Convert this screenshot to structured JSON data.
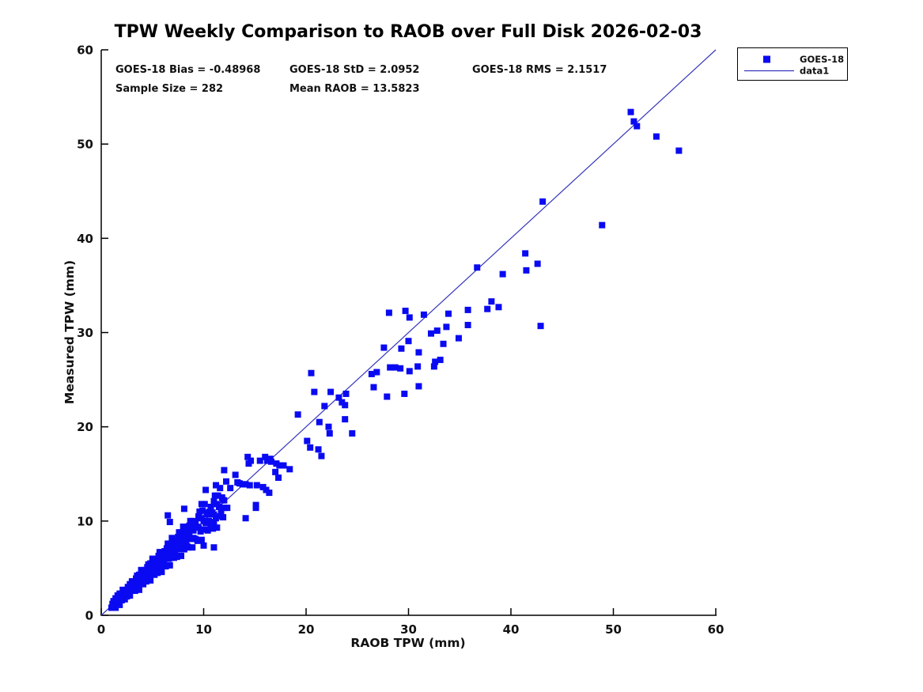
{
  "chart_data": {
    "type": "scatter",
    "title": "TPW Weekly Comparison to RAOB over Full Disk 2026-02-03",
    "xlabel": "RAOB TPW (mm)",
    "ylabel": "Measured TPW (mm)",
    "xlim": [
      0,
      60
    ],
    "ylim": [
      0,
      60
    ],
    "xticks": [
      0,
      10,
      20,
      30,
      40,
      50,
      60
    ],
    "yticks": [
      0,
      10,
      20,
      30,
      40,
      50,
      60
    ],
    "grid": false,
    "legend": {
      "position": "top-right-outside",
      "entries": [
        {
          "label": "GOES-18",
          "type": "marker"
        },
        {
          "label": "data1",
          "type": "line"
        }
      ]
    },
    "annotations": {
      "bias": "GOES-18 Bias = -0.48968",
      "std": "GOES-18 StD = 2.0952",
      "rms": "GOES-18 RMS = 2.1517",
      "sample_size": "Sample Size = 282",
      "mean_raob": "Mean RAOB = 13.5823"
    },
    "identity_line": {
      "x": [
        0,
        60
      ],
      "y": [
        0,
        60
      ],
      "name": "data1"
    },
    "series": [
      {
        "name": "GOES-18",
        "marker": "filled-square",
        "color": "#0a0af2",
        "points": [
          [
            51.7,
            53.4
          ],
          [
            52.0,
            52.4
          ],
          [
            52.3,
            51.9
          ],
          [
            54.2,
            50.8
          ],
          [
            56.4,
            49.3
          ],
          [
            48.9,
            41.4
          ],
          [
            43.1,
            43.9
          ],
          [
            41.4,
            38.4
          ],
          [
            42.6,
            37.3
          ],
          [
            41.5,
            36.6
          ],
          [
            36.7,
            36.9
          ],
          [
            39.2,
            36.2
          ],
          [
            38.1,
            33.3
          ],
          [
            37.7,
            32.5
          ],
          [
            38.8,
            32.7
          ],
          [
            35.8,
            32.4
          ],
          [
            33.9,
            32.0
          ],
          [
            31.5,
            31.9
          ],
          [
            29.7,
            32.3
          ],
          [
            28.1,
            32.1
          ],
          [
            30.1,
            31.6
          ],
          [
            35.8,
            30.8
          ],
          [
            42.9,
            30.7
          ],
          [
            33.7,
            30.6
          ],
          [
            32.8,
            30.2
          ],
          [
            32.2,
            29.9
          ],
          [
            34.9,
            29.4
          ],
          [
            33.4,
            28.8
          ],
          [
            30.0,
            29.1
          ],
          [
            29.3,
            28.3
          ],
          [
            27.6,
            28.4
          ],
          [
            31.0,
            27.9
          ],
          [
            32.6,
            26.9
          ],
          [
            33.1,
            27.1
          ],
          [
            26.4,
            25.6
          ],
          [
            26.9,
            25.8
          ],
          [
            28.2,
            26.3
          ],
          [
            28.7,
            26.3
          ],
          [
            29.2,
            26.2
          ],
          [
            30.1,
            25.9
          ],
          [
            30.9,
            26.4
          ],
          [
            32.5,
            26.4
          ],
          [
            26.6,
            24.2
          ],
          [
            27.9,
            23.2
          ],
          [
            29.6,
            23.5
          ],
          [
            31.0,
            24.3
          ],
          [
            20.5,
            25.7
          ],
          [
            20.8,
            23.7
          ],
          [
            22.4,
            23.7
          ],
          [
            23.2,
            23.1
          ],
          [
            23.5,
            22.6
          ],
          [
            23.8,
            22.3
          ],
          [
            23.9,
            23.5
          ],
          [
            21.8,
            22.2
          ],
          [
            19.2,
            21.3
          ],
          [
            21.3,
            20.5
          ],
          [
            22.2,
            20.0
          ],
          [
            22.3,
            19.3
          ],
          [
            24.5,
            19.3
          ],
          [
            23.8,
            20.8
          ],
          [
            20.1,
            18.5
          ],
          [
            20.4,
            17.8
          ],
          [
            21.2,
            17.6
          ],
          [
            21.5,
            16.9
          ],
          [
            14.3,
            16.8
          ],
          [
            14.4,
            16.1
          ],
          [
            15.5,
            16.4
          ],
          [
            16.0,
            16.8
          ],
          [
            16.2,
            16.4
          ],
          [
            16.5,
            16.6
          ],
          [
            16.6,
            16.3
          ],
          [
            17.1,
            16.1
          ],
          [
            17.4,
            15.9
          ],
          [
            17.8,
            15.9
          ],
          [
            18.4,
            15.5
          ],
          [
            17.0,
            15.2
          ],
          [
            17.3,
            14.6
          ],
          [
            13.3,
            14.1
          ],
          [
            13.5,
            14.0
          ],
          [
            14.1,
            13.9
          ],
          [
            14.5,
            13.8
          ],
          [
            15.2,
            13.8
          ],
          [
            15.8,
            13.6
          ],
          [
            16.1,
            13.3
          ],
          [
            16.4,
            13.0
          ],
          [
            15.1,
            11.7
          ],
          [
            12.0,
            15.4
          ],
          [
            13.1,
            14.9
          ],
          [
            14.6,
            16.4
          ],
          [
            11.2,
            13.8
          ],
          [
            10.2,
            13.3
          ],
          [
            13.8,
            13.9
          ],
          [
            9.8,
            11.8
          ],
          [
            8.1,
            11.3
          ],
          [
            6.5,
            10.6
          ],
          [
            6.7,
            9.9
          ],
          [
            12.0,
            12.2
          ],
          [
            12.3,
            11.4
          ],
          [
            11.7,
            10.9
          ],
          [
            15.1,
            11.4
          ],
          [
            14.1,
            10.3
          ],
          [
            11.0,
            9.9
          ],
          [
            10.0,
            7.4
          ],
          [
            11.0,
            7.2
          ],
          [
            12.6,
            13.5
          ],
          [
            12.2,
            14.2
          ],
          [
            1.0,
            0.8
          ],
          [
            1.1,
            1.2
          ],
          [
            1.1,
            0.8
          ],
          [
            1.2,
            1.5
          ],
          [
            1.3,
            1.3
          ],
          [
            1.4,
            0.8
          ],
          [
            1.4,
            1.8
          ],
          [
            1.5,
            1.4
          ],
          [
            1.6,
            2.1
          ],
          [
            1.6,
            1.4
          ],
          [
            1.7,
            1.9
          ],
          [
            1.8,
            1.1
          ],
          [
            1.8,
            2.3
          ],
          [
            1.9,
            1.9
          ],
          [
            2.0,
            1.6
          ],
          [
            2.1,
            2.7
          ],
          [
            2.1,
            2.0
          ],
          [
            2.2,
            2.5
          ],
          [
            2.3,
            1.7
          ],
          [
            2.3,
            2.4
          ],
          [
            2.4,
            2.2
          ],
          [
            2.5,
            2.6
          ],
          [
            2.5,
            2.0
          ],
          [
            2.6,
            3.0
          ],
          [
            2.7,
            2.7
          ],
          [
            2.8,
            2.1
          ],
          [
            2.8,
            3.3
          ],
          [
            2.9,
            2.8
          ],
          [
            3.0,
            3.6
          ],
          [
            3.0,
            2.7
          ],
          [
            3.1,
            2.8
          ],
          [
            3.1,
            3.3
          ],
          [
            3.2,
            2.6
          ],
          [
            3.2,
            3.6
          ],
          [
            3.3,
            3.3
          ],
          [
            3.3,
            2.6
          ],
          [
            3.4,
            3.9
          ],
          [
            3.4,
            3.3
          ],
          [
            3.5,
            4.2
          ],
          [
            3.6,
            3.2
          ],
          [
            3.6,
            3.9
          ],
          [
            3.7,
            2.7
          ],
          [
            3.7,
            4.3
          ],
          [
            3.8,
            3.8
          ],
          [
            3.8,
            3.4
          ],
          [
            3.9,
            4.8
          ],
          [
            3.9,
            3.7
          ],
          [
            4.0,
            4.4
          ],
          [
            4.1,
            3.3
          ],
          [
            4.1,
            4.3
          ],
          [
            4.2,
            3.9
          ],
          [
            4.2,
            4.4
          ],
          [
            4.3,
            3.6
          ],
          [
            4.3,
            4.8
          ],
          [
            4.4,
            4.5
          ],
          [
            4.4,
            3.6
          ],
          [
            4.5,
            5.1
          ],
          [
            4.5,
            4.4
          ],
          [
            4.6,
            5.4
          ],
          [
            4.7,
            4.2
          ],
          [
            4.7,
            5.0
          ],
          [
            4.8,
            3.7
          ],
          [
            4.8,
            5.5
          ],
          [
            4.9,
            4.9
          ],
          [
            4.9,
            4.4
          ],
          [
            5.0,
            6.0
          ],
          [
            5.0,
            4.8
          ],
          [
            5.1,
            5.5
          ],
          [
            5.2,
            4.3
          ],
          [
            5.2,
            5.4
          ],
          [
            5.3,
            4.9
          ],
          [
            5.3,
            5.6
          ],
          [
            5.4,
            4.6
          ],
          [
            5.4,
            5.9
          ],
          [
            5.5,
            5.6
          ],
          [
            5.5,
            4.5
          ],
          [
            5.6,
            6.3
          ],
          [
            5.6,
            5.5
          ],
          [
            5.7,
            6.7
          ],
          [
            5.8,
            5.2
          ],
          [
            5.8,
            6.2
          ],
          [
            5.9,
            4.6
          ],
          [
            5.9,
            6.7
          ],
          [
            6.0,
            6.0
          ],
          [
            6.0,
            5.4
          ],
          [
            6.1,
            5.7
          ],
          [
            6.1,
            6.4
          ],
          [
            6.2,
            5.3
          ],
          [
            6.2,
            6.8
          ],
          [
            6.3,
            6.4
          ],
          [
            6.3,
            5.2
          ],
          [
            6.4,
            7.1
          ],
          [
            6.4,
            6.3
          ],
          [
            6.5,
            7.6
          ],
          [
            6.6,
            6.0
          ],
          [
            6.6,
            7.0
          ],
          [
            6.7,
            5.3
          ],
          [
            6.7,
            7.6
          ],
          [
            6.8,
            6.8
          ],
          [
            6.8,
            6.1
          ],
          [
            6.9,
            8.2
          ],
          [
            6.9,
            6.6
          ],
          [
            7.0,
            7.5
          ],
          [
            7.1,
            6.1
          ],
          [
            7.1,
            7.3
          ],
          [
            7.2,
            6.7
          ],
          [
            7.2,
            7.5
          ],
          [
            7.3,
            6.3
          ],
          [
            7.3,
            7.9
          ],
          [
            7.4,
            7.5
          ],
          [
            7.4,
            6.2
          ],
          [
            7.5,
            8.3
          ],
          [
            7.5,
            7.3
          ],
          [
            7.6,
            8.8
          ],
          [
            7.7,
            7.0
          ],
          [
            7.7,
            8.1
          ],
          [
            7.8,
            6.3
          ],
          [
            7.8,
            8.8
          ],
          [
            7.9,
            7.9
          ],
          [
            7.9,
            7.2
          ],
          [
            8.0,
            9.4
          ],
          [
            8.0,
            7.7
          ],
          [
            8.1,
            8.7
          ],
          [
            8.1,
            7.0
          ],
          [
            8.2,
            8.4
          ],
          [
            8.3,
            7.8
          ],
          [
            8.3,
            8.7
          ],
          [
            8.4,
            7.3
          ],
          [
            8.4,
            9.1
          ],
          [
            8.5,
            8.6
          ],
          [
            8.5,
            7.2
          ],
          [
            8.6,
            9.5
          ],
          [
            8.6,
            8.4
          ],
          [
            8.7,
            10.0
          ],
          [
            8.8,
            8.1
          ],
          [
            8.8,
            9.3
          ],
          [
            8.9,
            7.2
          ],
          [
            8.9,
            10.0
          ],
          [
            9.0,
            9.0
          ],
          [
            9.0,
            8.2
          ],
          [
            9.1,
            9.5
          ],
          [
            9.2,
            8.1
          ],
          [
            9.2,
            9.9
          ],
          [
            9.3,
            9.4
          ],
          [
            9.4,
            7.9
          ],
          [
            9.5,
            10.5
          ],
          [
            9.5,
            9.3
          ],
          [
            9.6,
            11.0
          ],
          [
            9.7,
            8.9
          ],
          [
            9.8,
            10.3
          ],
          [
            9.8,
            8.0
          ],
          [
            9.9,
            11.1
          ],
          [
            10.0,
            10.0
          ],
          [
            10.1,
            9.1
          ],
          [
            10.1,
            11.8
          ],
          [
            10.2,
            9.8
          ],
          [
            10.3,
            10.9
          ],
          [
            10.4,
            9.0
          ],
          [
            10.4,
            10.7
          ],
          [
            10.5,
            10.0
          ],
          [
            10.6,
            11.0
          ],
          [
            10.7,
            9.4
          ],
          [
            10.7,
            11.5
          ],
          [
            10.8,
            10.9
          ],
          [
            10.9,
            9.2
          ],
          [
            11.0,
            12.1
          ],
          [
            11.0,
            10.7
          ],
          [
            11.1,
            12.7
          ],
          [
            11.2,
            10.3
          ],
          [
            11.3,
            11.8
          ],
          [
            11.3,
            9.3
          ],
          [
            11.4,
            12.7
          ],
          [
            11.5,
            11.5
          ],
          [
            11.6,
            10.5
          ],
          [
            11.6,
            13.5
          ],
          [
            11.7,
            11.3
          ],
          [
            11.8,
            12.5
          ],
          [
            11.9,
            10.4
          ],
          [
            11.9,
            12.2
          ],
          [
            12.0,
            11.4
          ]
        ]
      }
    ]
  },
  "colors": {
    "marker": "#0a0af2",
    "line": "#3434bd",
    "axis": "#000000",
    "background": "#ffffff"
  }
}
